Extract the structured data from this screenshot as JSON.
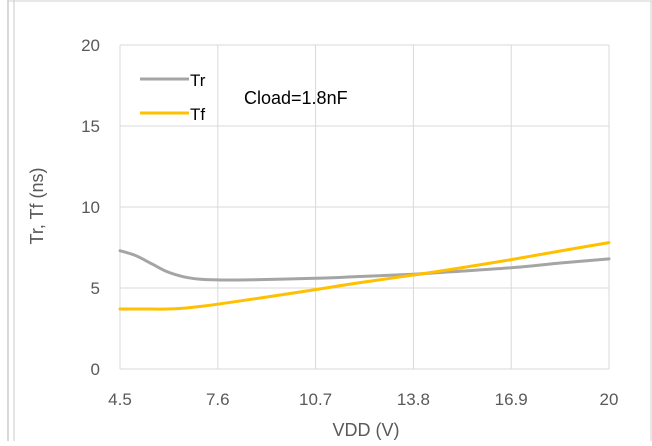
{
  "chart_data": {
    "type": "line",
    "title": "",
    "annotation": "Cload=1.8nF",
    "xlabel": "VDD (V)",
    "ylabel": "Tr, Tf (ns)",
    "xlim": [
      4.5,
      20
    ],
    "ylim": [
      0,
      20
    ],
    "x_ticks": [
      "4.5",
      "7.6",
      "10.7",
      "13.8",
      "16.9",
      "20"
    ],
    "y_ticks": [
      "0",
      "5",
      "10",
      "15",
      "20"
    ],
    "grid": "horizontal and vertical",
    "legend_position": "top-left",
    "series": [
      {
        "name": "Tr",
        "color": "#A5A5A5",
        "x": [
          4.5,
          5.0,
          5.5,
          6.0,
          6.5,
          7.0,
          7.6,
          8.5,
          10.7,
          12.0,
          13.8,
          15.0,
          16.9,
          18.5,
          20.0
        ],
        "y": [
          7.3,
          7.0,
          6.5,
          6.0,
          5.7,
          5.55,
          5.5,
          5.5,
          5.6,
          5.7,
          5.85,
          6.0,
          6.25,
          6.55,
          6.8
        ]
      },
      {
        "name": "Tf",
        "color": "#FFC000",
        "x": [
          4.5,
          5.0,
          5.5,
          6.0,
          6.5,
          7.0,
          7.6,
          9.0,
          10.7,
          12.0,
          13.8,
          15.0,
          16.9,
          18.5,
          20.0
        ],
        "y": [
          3.7,
          3.7,
          3.7,
          3.7,
          3.75,
          3.85,
          4.0,
          4.4,
          4.9,
          5.3,
          5.8,
          6.15,
          6.75,
          7.3,
          7.8
        ]
      }
    ]
  }
}
